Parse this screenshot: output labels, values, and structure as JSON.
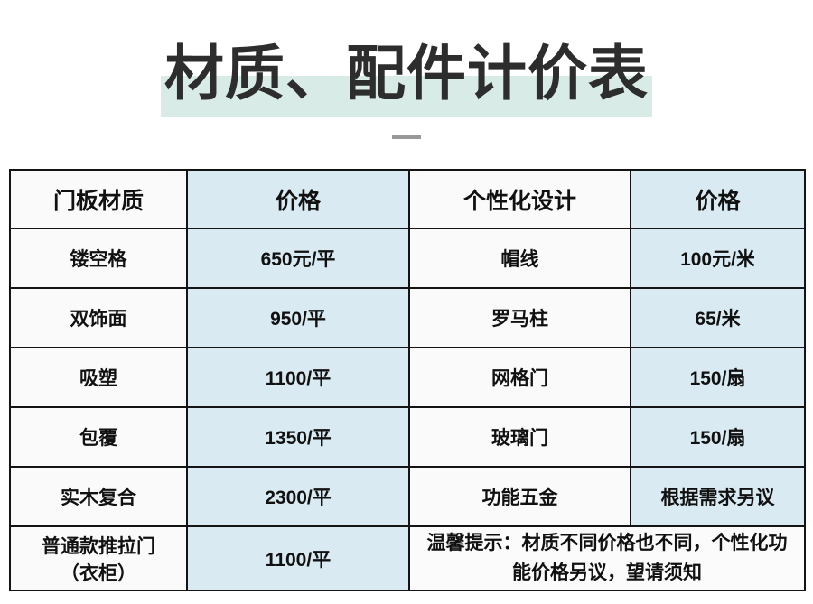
{
  "title": {
    "text": "材质、配件计价表",
    "highlight_color": "#d8ebe7",
    "dash_color": "#999999"
  },
  "table": {
    "headers": [
      "门板材质",
      "价格",
      "个性化设计",
      "价格"
    ],
    "rows": [
      {
        "cells": [
          "镂空格",
          "650元/平",
          "帽线",
          "100元/米"
        ]
      },
      {
        "cells": [
          "双饰面",
          "950/平",
          "罗马柱",
          "65/米"
        ]
      },
      {
        "cells": [
          "吸塑",
          "1100/平",
          "网格门",
          "150/扇"
        ]
      },
      {
        "cells": [
          "包覆",
          "1350/平",
          "玻璃门",
          "150/扇"
        ]
      },
      {
        "cells": [
          "实木复合",
          "2300/平",
          "功能五金",
          "根据需求另议"
        ]
      },
      {
        "cells": [
          "普通款推拉门（衣柜）",
          "1100/平"
        ],
        "note": "温馨提示：材质不同价格也不同，个性化功能价格另议，望请须知"
      }
    ],
    "colors": {
      "price_column_bg": "#d9eaf2",
      "label_column_bg": "#fafafa",
      "border": "#141414"
    }
  }
}
